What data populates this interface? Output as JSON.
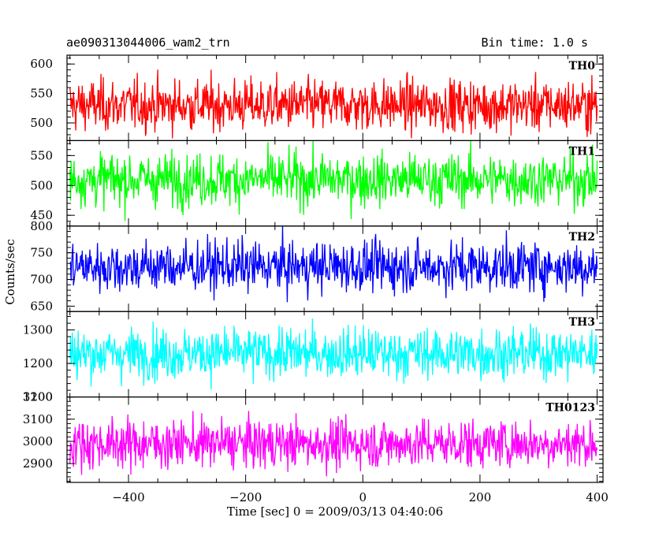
{
  "header": {
    "title": "ae090313044006_wam2_trn",
    "bin_time": "Bin time: 1.0 s"
  },
  "chart_data": {
    "type": "line",
    "title": "ae090313044006_wam2_trn",
    "xlabel": "Time [sec] 0 = 2009/03/13 04:40:06",
    "ylabel": "Counts/sec",
    "xlim": [
      -505,
      410
    ],
    "x_ticks": [
      -400,
      -200,
      0,
      200,
      400
    ],
    "x_tick_labels": [
      "−400",
      "−200",
      "0",
      "200",
      "400"
    ],
    "bin_time_s": 1.0,
    "x_start": -500,
    "x_end": 400,
    "panels": [
      {
        "name": "TH0",
        "color": "#ff0000",
        "ylim": [
          470,
          615
        ],
        "yticks": [
          500,
          550,
          600
        ],
        "mean": 530,
        "sigma": 22
      },
      {
        "name": "TH1",
        "color": "#00ff00",
        "ylim": [
          432,
          575
        ],
        "yticks": [
          450,
          500,
          550
        ],
        "mean": 510,
        "sigma": 22
      },
      {
        "name": "TH2",
        "color": "#0000ff",
        "ylim": [
          640,
          800
        ],
        "yticks": [
          650,
          700,
          750,
          800
        ],
        "mean": 724,
        "sigma": 24
      },
      {
        "name": "TH3",
        "color": "#00ffff",
        "ylim": [
          1100,
          1355
        ],
        "yticks": [
          1100,
          1200,
          1300
        ],
        "mean": 1230,
        "sigma": 38
      },
      {
        "name": "TH0123",
        "color": "#ff00ff",
        "ylim": [
          2815,
          3200
        ],
        "yticks": [
          2900,
          3000,
          3100,
          3200
        ],
        "mean": 2990,
        "sigma": 55
      }
    ],
    "grid": false,
    "legend": "none"
  }
}
